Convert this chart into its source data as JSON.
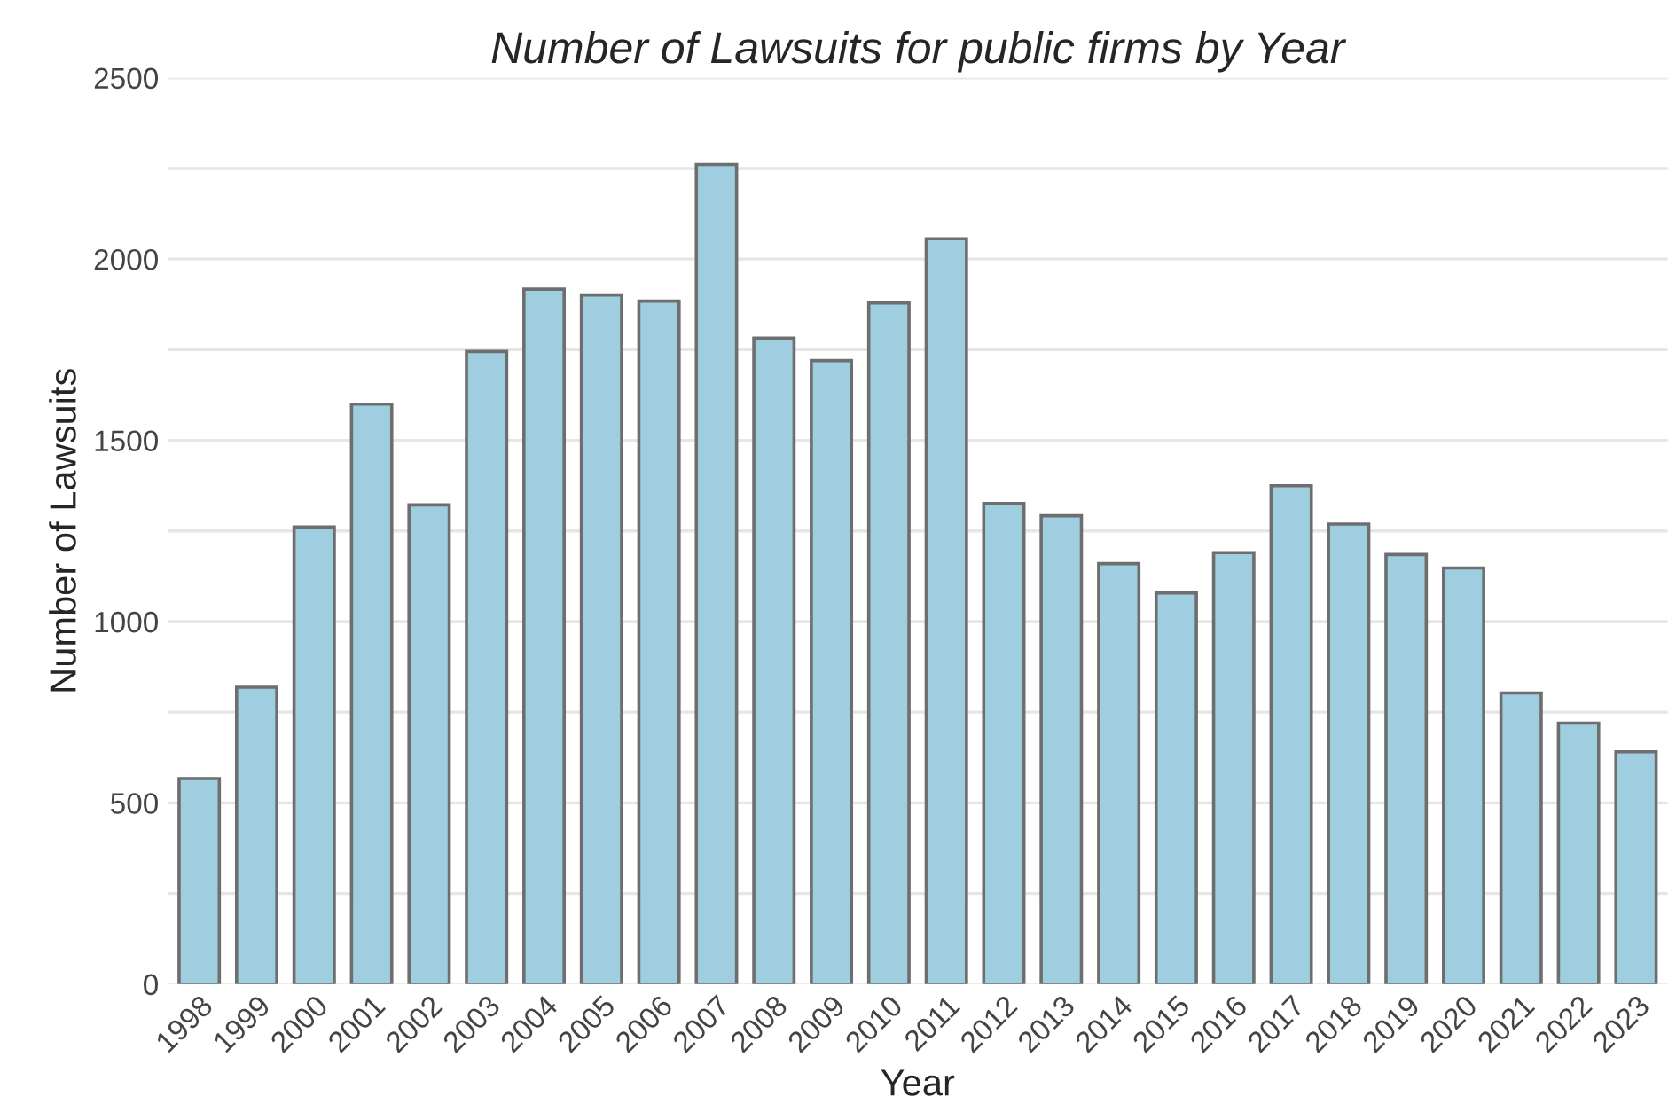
{
  "chart_data": {
    "type": "bar",
    "title": "Number of Lawsuits for public firms by Year",
    "xlabel": "Year",
    "ylabel": "Number of Lawsuits",
    "categories": [
      "1998",
      "1999",
      "2000",
      "2001",
      "2002",
      "2003",
      "2004",
      "2005",
      "2006",
      "2007",
      "2008",
      "2009",
      "2010",
      "2011",
      "2012",
      "2013",
      "2014",
      "2015",
      "2016",
      "2017",
      "2018",
      "2019",
      "2020",
      "2021",
      "2022",
      "2023"
    ],
    "values": [
      567,
      819,
      1261,
      1600,
      1322,
      1745,
      1917,
      1901,
      1884,
      2261,
      1782,
      1720,
      1879,
      2056,
      1326,
      1292,
      1160,
      1079,
      1190,
      1375,
      1269,
      1185,
      1148,
      803,
      720,
      641
    ],
    "color": "#9fcee0",
    "ylim": [
      0,
      2500
    ],
    "yticks": [
      0,
      {
        "value": 250,
        "label": null
      },
      500,
      {
        "value": 750,
        "label": null
      },
      1000,
      {
        "value": 1250,
        "label": null
      },
      1500,
      {
        "value": 1750,
        "label": null
      },
      2000,
      {
        "value": 2250,
        "label": null
      },
      2500
    ],
    "grid": "y"
  }
}
